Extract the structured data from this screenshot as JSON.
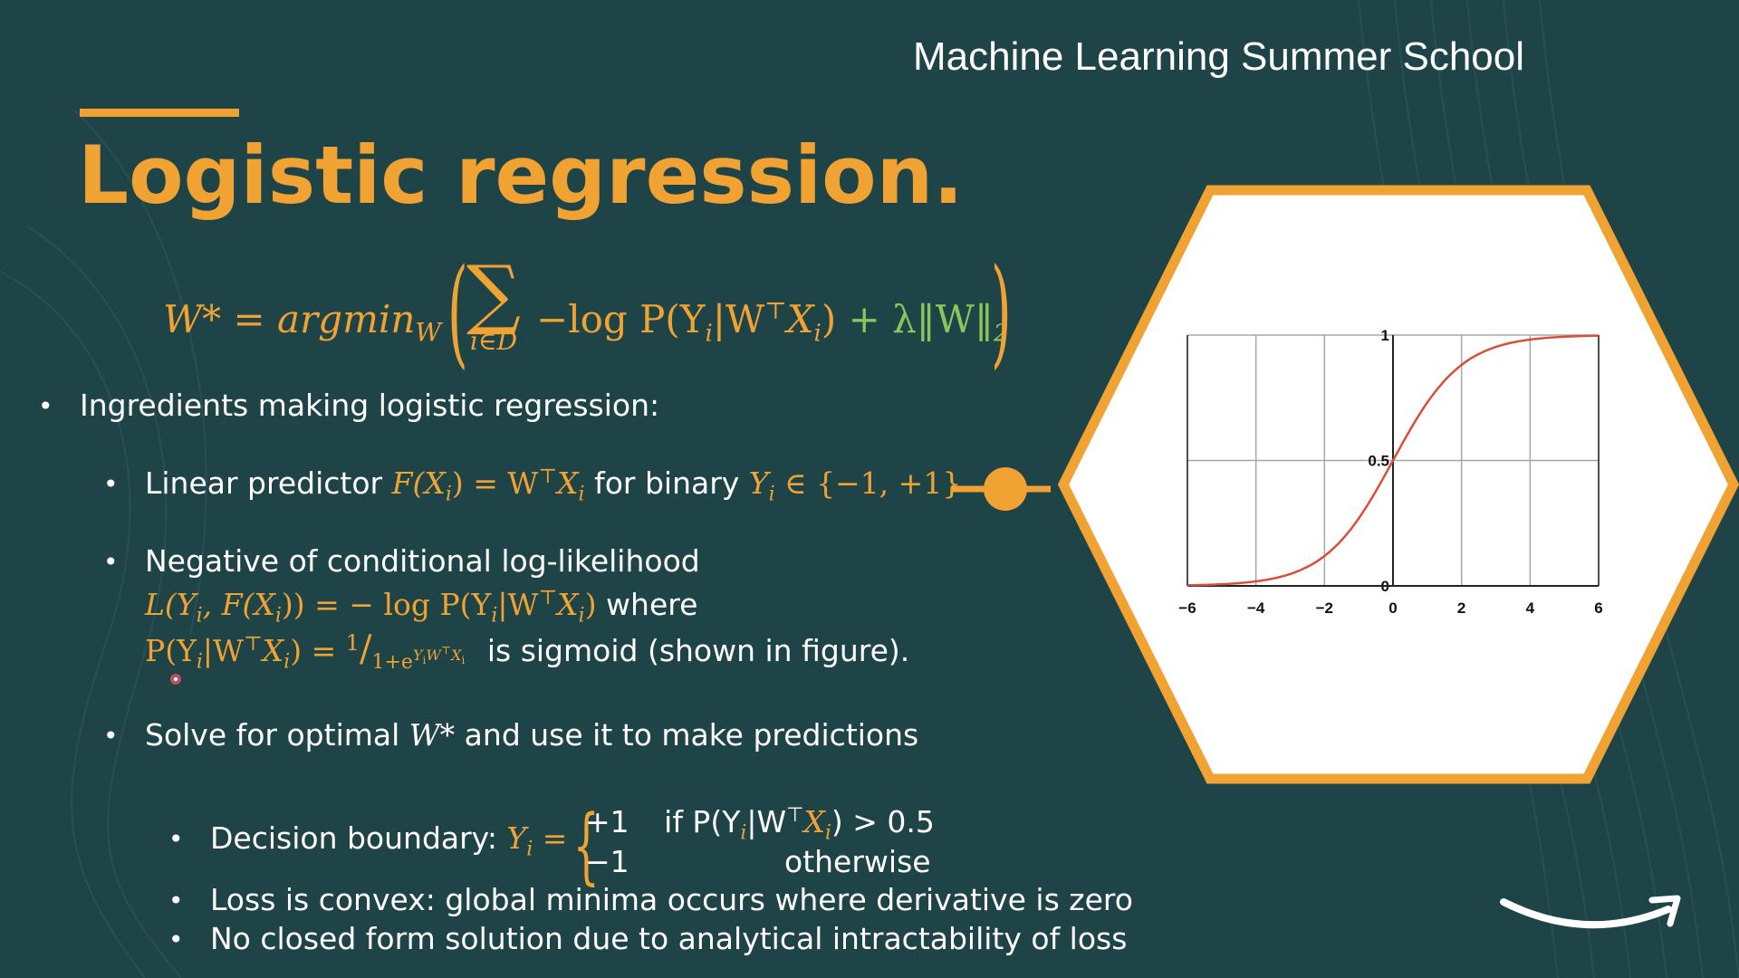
{
  "header": {
    "school": "Machine Learning Summer School"
  },
  "title": "Logistic regression.",
  "formula": {
    "lhs": "W* = argmin",
    "lhs_sub": "W",
    "sum_sub": "i∈D",
    "term": "−log P(Y",
    "term_i": "i",
    "term_rest": "|W",
    "T": "⊤",
    "term_x": "X",
    "term_close": ")",
    "reg": "+ λ‖W‖",
    "reg_sub": "2"
  },
  "bullets": {
    "b1": "Ingredients making logistic regression:",
    "b2_pre": "Linear predictor ",
    "b2_math1": "F(X",
    "b2_math2": ") = W",
    "b2_math3": "X",
    "b2_mid": " for binary ",
    "b2_math4": "Y",
    "b2_math5": " ∈ {−1, +1}",
    "b3_line1": "Negative of conditional log-likelihood",
    "b3_math1": "L(Y",
    "b3_math2": ", F(X",
    "b3_math3": ")) = − log P(Y",
    "b3_math4": "|W",
    "b3_math5": "X",
    "b3_math6": ")",
    "b3_where": " where",
    "b3_p1": "P(Y",
    "b3_p2": "|W",
    "b3_p3": "X",
    "b3_p4": ") = ",
    "b3_frac_num": "1",
    "b3_frac_den": "1+e",
    "b3_frac_exp": "Y",
    "b3_frac_exp2": "W",
    "b3_frac_exp3": "X",
    "b3_sigmoid": "is sigmoid (shown in figure).",
    "b4_pre": "Solve for optimal ",
    "b4_math": "W*",
    "b4_post": " and use it to make predictions",
    "b5_pre": "Decision boundary: ",
    "b5_math": "Y",
    "b5_eq": " =",
    "b5_case1": "+1",
    "b5_cond1": "if P(Y",
    "b5_cond1b": "|W",
    "b5_cond1c": "X",
    "b5_cond1d": ") > 0.5",
    "b5_case2": "−1",
    "b5_cond2": "otherwise",
    "b6": "Loss is convex: global minima occurs where derivative is zero",
    "b7": "No closed form solution due to analytical intractability of loss"
  },
  "chart_data": {
    "type": "line",
    "title": "",
    "xlabel": "",
    "ylabel": "",
    "xlim": [
      -6,
      6
    ],
    "ylim": [
      0,
      1
    ],
    "x_ticks": [
      "−6",
      "−4",
      "−2",
      "0",
      "2",
      "4",
      "6"
    ],
    "y_ticks": [
      "0",
      "0.5",
      "1"
    ],
    "grid": true,
    "series": [
      {
        "function": "sigmoid",
        "x": [
          -6,
          -5,
          -4,
          -3,
          -2,
          -1,
          0,
          1,
          2,
          3,
          4,
          5,
          6
        ],
        "y": [
          0.0025,
          0.0067,
          0.018,
          0.047,
          0.119,
          0.269,
          0.5,
          0.731,
          0.881,
          0.953,
          0.982,
          0.993,
          0.9975
        ],
        "color": "#d9503a"
      }
    ]
  },
  "colors": {
    "background": "#1f4448",
    "accent": "#f0a233",
    "highlight": "#8dc45b",
    "text": "#ffffff"
  },
  "icons": {
    "logo": "smile-arrow-logo",
    "cursor": "red-cursor-dot"
  }
}
